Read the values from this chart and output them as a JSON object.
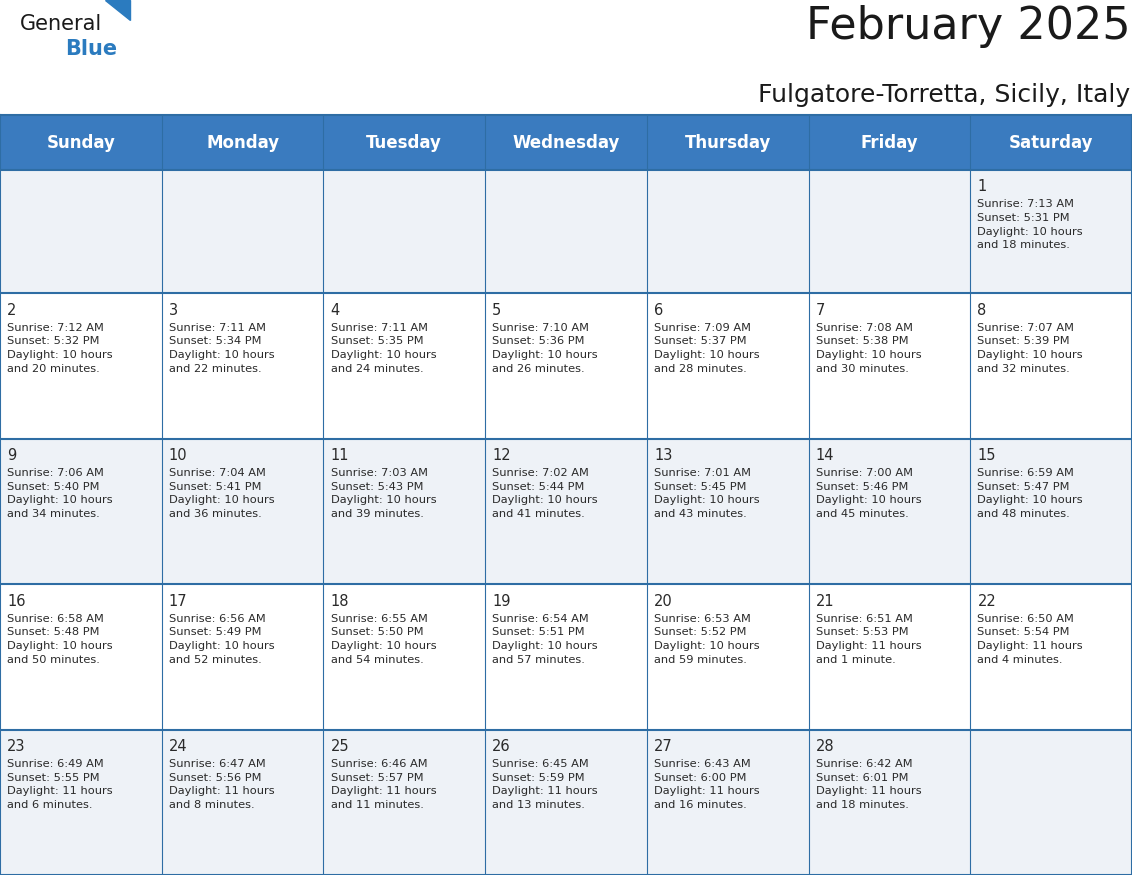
{
  "title": "February 2025",
  "subtitle": "Fulgatore-Torretta, Sicily, Italy",
  "header_bg": "#3a7bbf",
  "header_text": "#ffffff",
  "row_bg_light": "#eef2f7",
  "row_bg_white": "#ffffff",
  "border_color": "#2e6da4",
  "day_headers": [
    "Sunday",
    "Monday",
    "Tuesday",
    "Wednesday",
    "Thursday",
    "Friday",
    "Saturday"
  ],
  "calendar": [
    [
      "",
      "",
      "",
      "",
      "",
      "",
      "1\nSunrise: 7:13 AM\nSunset: 5:31 PM\nDaylight: 10 hours\nand 18 minutes."
    ],
    [
      "2\nSunrise: 7:12 AM\nSunset: 5:32 PM\nDaylight: 10 hours\nand 20 minutes.",
      "3\nSunrise: 7:11 AM\nSunset: 5:34 PM\nDaylight: 10 hours\nand 22 minutes.",
      "4\nSunrise: 7:11 AM\nSunset: 5:35 PM\nDaylight: 10 hours\nand 24 minutes.",
      "5\nSunrise: 7:10 AM\nSunset: 5:36 PM\nDaylight: 10 hours\nand 26 minutes.",
      "6\nSunrise: 7:09 AM\nSunset: 5:37 PM\nDaylight: 10 hours\nand 28 minutes.",
      "7\nSunrise: 7:08 AM\nSunset: 5:38 PM\nDaylight: 10 hours\nand 30 minutes.",
      "8\nSunrise: 7:07 AM\nSunset: 5:39 PM\nDaylight: 10 hours\nand 32 minutes."
    ],
    [
      "9\nSunrise: 7:06 AM\nSunset: 5:40 PM\nDaylight: 10 hours\nand 34 minutes.",
      "10\nSunrise: 7:04 AM\nSunset: 5:41 PM\nDaylight: 10 hours\nand 36 minutes.",
      "11\nSunrise: 7:03 AM\nSunset: 5:43 PM\nDaylight: 10 hours\nand 39 minutes.",
      "12\nSunrise: 7:02 AM\nSunset: 5:44 PM\nDaylight: 10 hours\nand 41 minutes.",
      "13\nSunrise: 7:01 AM\nSunset: 5:45 PM\nDaylight: 10 hours\nand 43 minutes.",
      "14\nSunrise: 7:00 AM\nSunset: 5:46 PM\nDaylight: 10 hours\nand 45 minutes.",
      "15\nSunrise: 6:59 AM\nSunset: 5:47 PM\nDaylight: 10 hours\nand 48 minutes."
    ],
    [
      "16\nSunrise: 6:58 AM\nSunset: 5:48 PM\nDaylight: 10 hours\nand 50 minutes.",
      "17\nSunrise: 6:56 AM\nSunset: 5:49 PM\nDaylight: 10 hours\nand 52 minutes.",
      "18\nSunrise: 6:55 AM\nSunset: 5:50 PM\nDaylight: 10 hours\nand 54 minutes.",
      "19\nSunrise: 6:54 AM\nSunset: 5:51 PM\nDaylight: 10 hours\nand 57 minutes.",
      "20\nSunrise: 6:53 AM\nSunset: 5:52 PM\nDaylight: 10 hours\nand 59 minutes.",
      "21\nSunrise: 6:51 AM\nSunset: 5:53 PM\nDaylight: 11 hours\nand 1 minute.",
      "22\nSunrise: 6:50 AM\nSunset: 5:54 PM\nDaylight: 11 hours\nand 4 minutes."
    ],
    [
      "23\nSunrise: 6:49 AM\nSunset: 5:55 PM\nDaylight: 11 hours\nand 6 minutes.",
      "24\nSunrise: 6:47 AM\nSunset: 5:56 PM\nDaylight: 11 hours\nand 8 minutes.",
      "25\nSunrise: 6:46 AM\nSunset: 5:57 PM\nDaylight: 11 hours\nand 11 minutes.",
      "26\nSunrise: 6:45 AM\nSunset: 5:59 PM\nDaylight: 11 hours\nand 13 minutes.",
      "27\nSunrise: 6:43 AM\nSunset: 6:00 PM\nDaylight: 11 hours\nand 16 minutes.",
      "28\nSunrise: 6:42 AM\nSunset: 6:01 PM\nDaylight: 11 hours\nand 18 minutes.",
      ""
    ]
  ],
  "logo_general_color": "#1a1a1a",
  "logo_blue_color": "#2b7bbf",
  "title_fontsize": 32,
  "subtitle_fontsize": 18,
  "header_fontsize": 12,
  "cell_day_fontsize": 10.5,
  "cell_info_fontsize": 8.2
}
